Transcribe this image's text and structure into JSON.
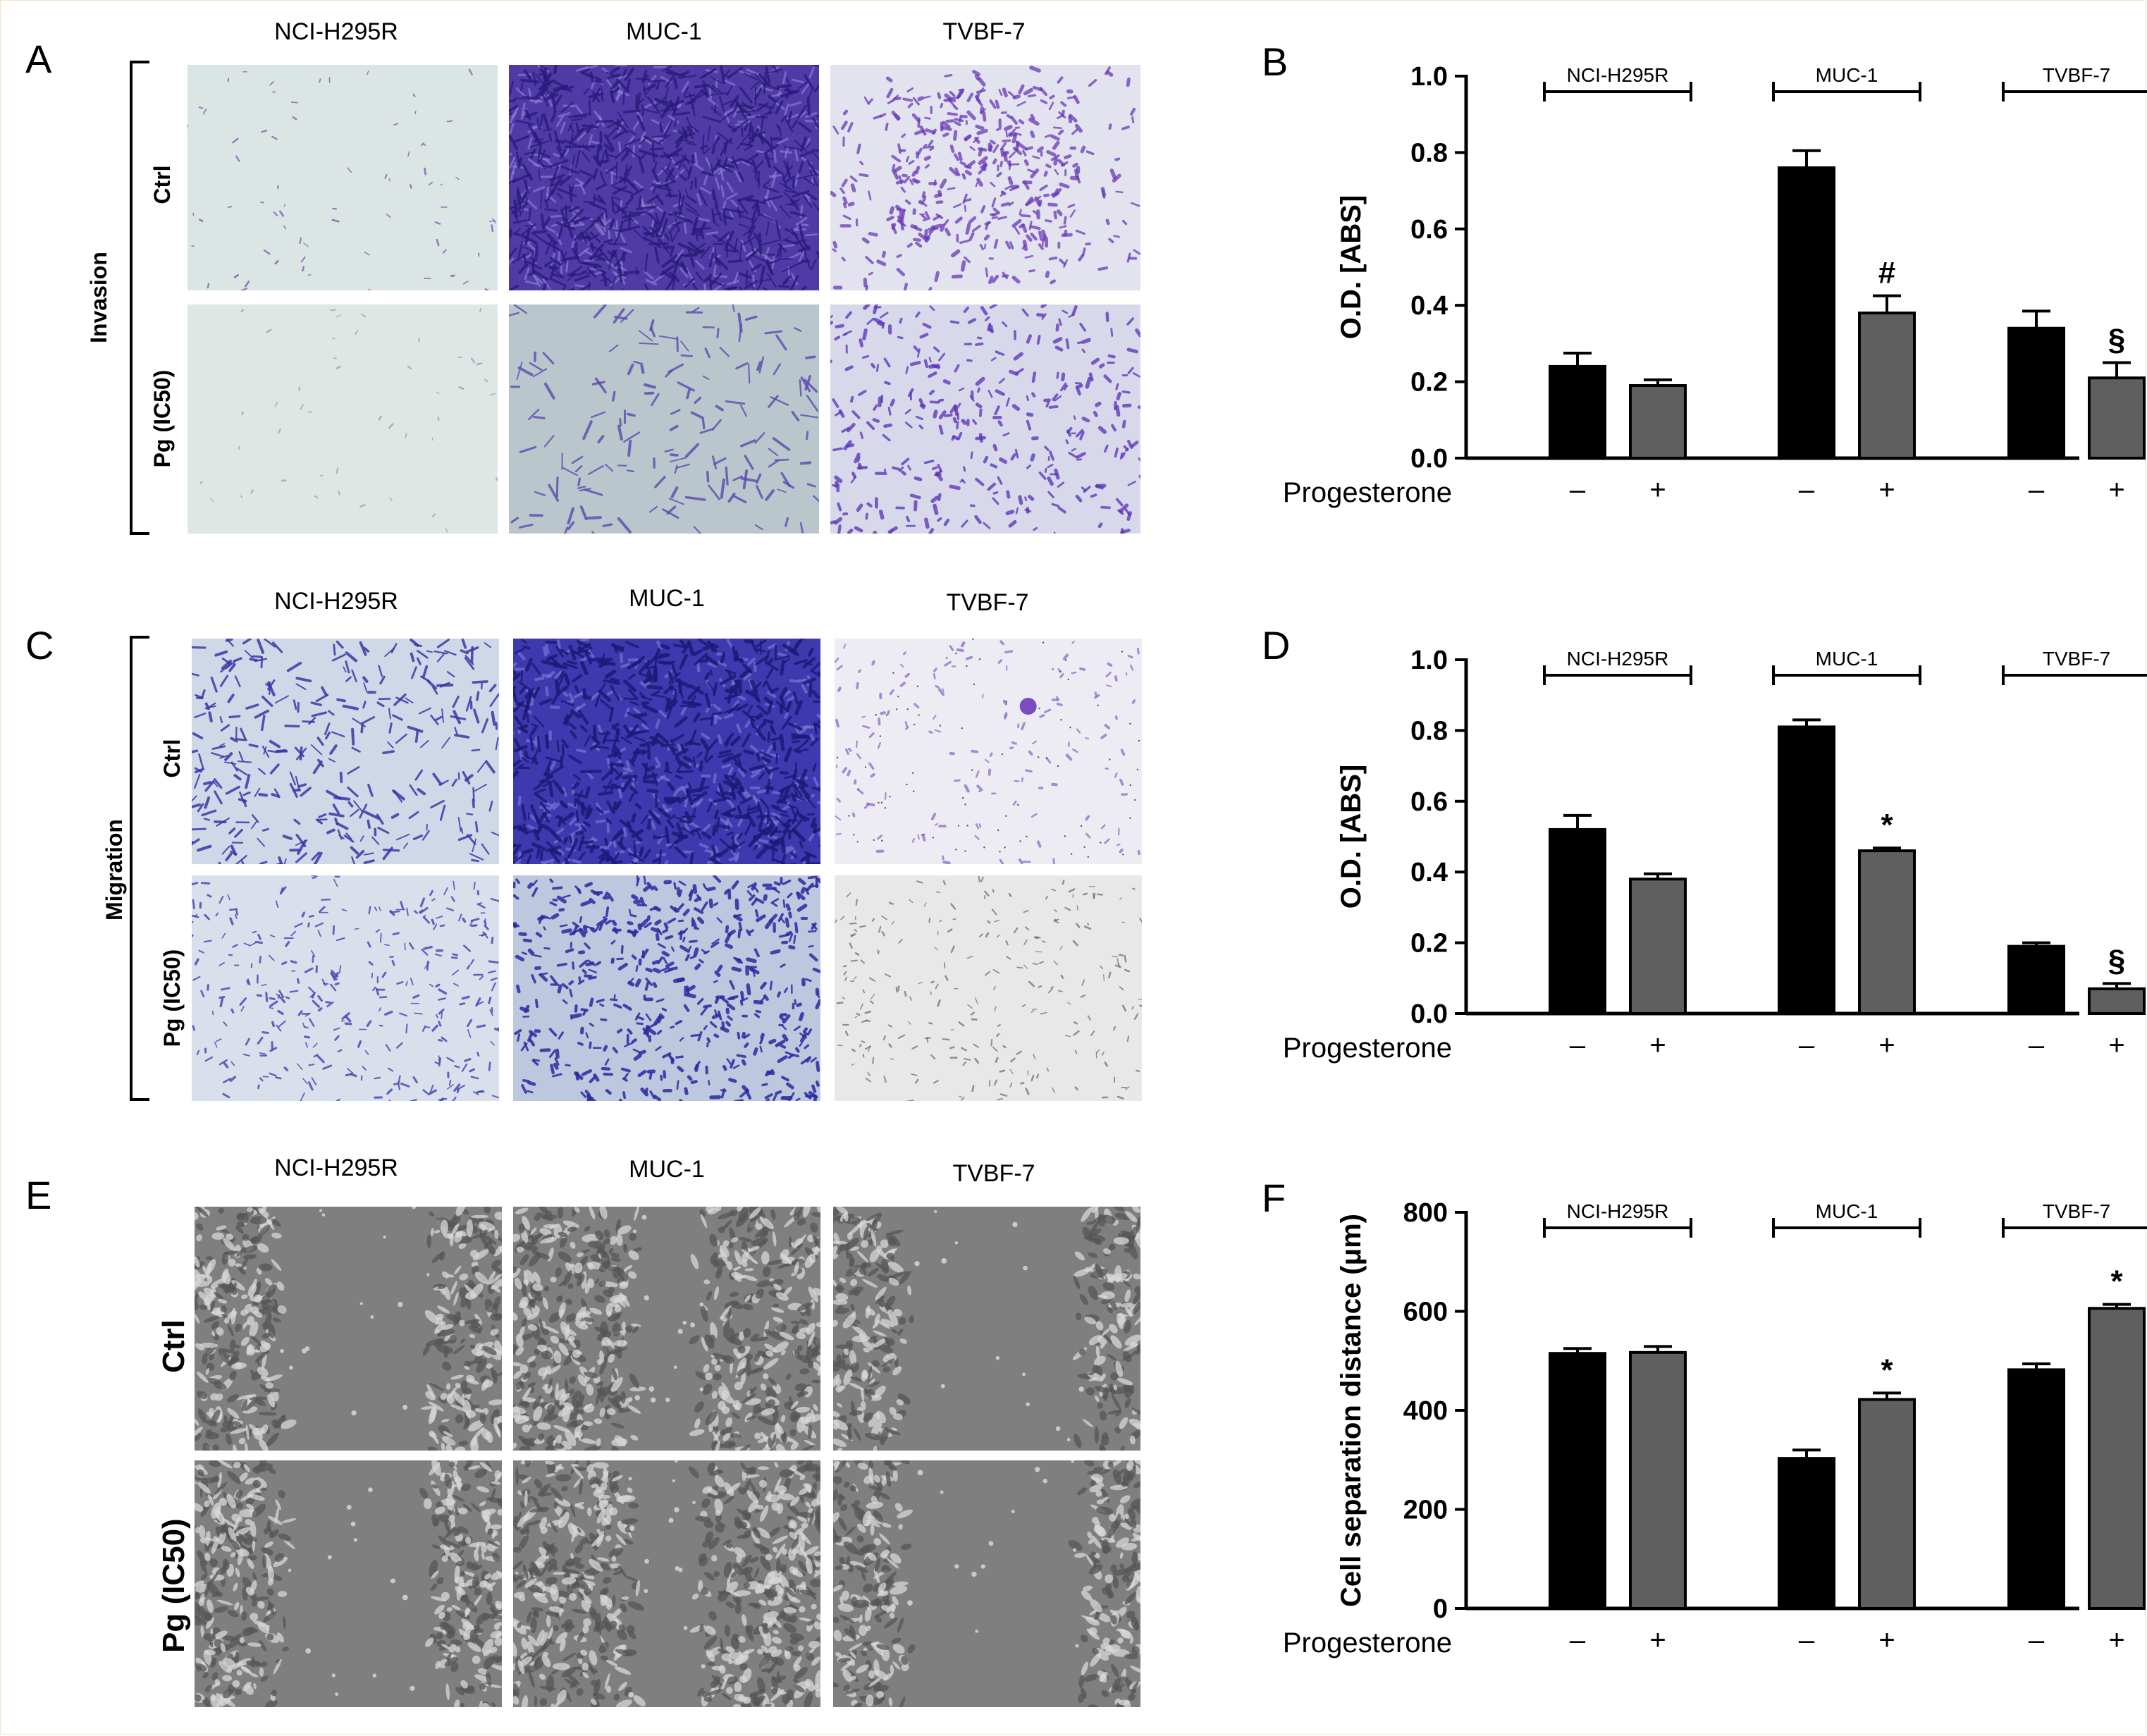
{
  "panel_letters": [
    "A",
    "B",
    "C",
    "D",
    "E",
    "F"
  ],
  "micrographs": {
    "columns": [
      "NCI-H295R",
      "MUC-1",
      "TVBF-7"
    ],
    "rows": [
      "Ctrl",
      "Pg (IC50)"
    ],
    "assays": [
      "Invasion",
      "Migration"
    ],
    "colors": {
      "invasion_stain": "#5a2fb8",
      "migration_stain": "#3a2ec0",
      "scratch_bg": "#8a8a8a"
    }
  },
  "chart_data": [
    {
      "panel": "B",
      "type": "bar",
      "groups": [
        "NCI-H295R",
        "MUC-1",
        "TVBF-7"
      ],
      "categories": [
        "–",
        "+",
        "–",
        "+",
        "–",
        "+"
      ],
      "xlabel": "Progesterone",
      "ylabel": "O.D. [ABS]",
      "ylim": [
        0,
        1.0
      ],
      "yticks": [
        "0.0",
        "0.2",
        "0.4",
        "0.6",
        "0.8",
        "1.0"
      ],
      "values": [
        0.24,
        0.19,
        0.76,
        0.38,
        0.34,
        0.21
      ],
      "errors": [
        0.035,
        0.015,
        0.045,
        0.045,
        0.045,
        0.04
      ],
      "annotations": [
        "",
        "",
        "",
        "#",
        "",
        "§"
      ],
      "colors": [
        "#000000",
        "#5f5f5f",
        "#000000",
        "#5f5f5f",
        "#000000",
        "#5f5f5f"
      ],
      "grid": false
    },
    {
      "panel": "D",
      "type": "bar",
      "groups": [
        "NCI-H295R",
        "MUC-1",
        "TVBF-7"
      ],
      "categories": [
        "–",
        "+",
        "–",
        "+",
        "–",
        "+"
      ],
      "xlabel": "Progesterone",
      "ylabel": "O.D. [ABS]",
      "ylim": [
        0,
        1.0
      ],
      "yticks": [
        "0.0",
        "0.2",
        "0.4",
        "0.6",
        "0.8",
        "1.0"
      ],
      "values": [
        0.52,
        0.38,
        0.81,
        0.46,
        0.19,
        0.07
      ],
      "errors": [
        0.04,
        0.015,
        0.02,
        0.008,
        0.01,
        0.015
      ],
      "annotations": [
        "",
        "",
        "",
        "*",
        "",
        "§"
      ],
      "colors": [
        "#000000",
        "#5f5f5f",
        "#000000",
        "#5f5f5f",
        "#000000",
        "#5f5f5f"
      ],
      "grid": false
    },
    {
      "panel": "F",
      "type": "bar",
      "groups": [
        "NCI-H295R",
        "MUC-1",
        "TVBF-7"
      ],
      "categories": [
        "–",
        "+",
        "–",
        "+",
        "–",
        "+"
      ],
      "xlabel": "Progesterone",
      "ylabel": "Cell separation distance (μm)",
      "ylim": [
        0,
        800
      ],
      "yticks": [
        "0",
        "200",
        "400",
        "600",
        "800"
      ],
      "values": [
        515,
        517,
        303,
        422,
        482,
        606
      ],
      "errors": [
        10,
        12,
        17,
        13,
        12,
        8
      ],
      "annotations": [
        "",
        "",
        "",
        "*",
        "",
        "*"
      ],
      "colors": [
        "#000000",
        "#5f5f5f",
        "#000000",
        "#5f5f5f",
        "#000000",
        "#5f5f5f"
      ],
      "grid": false
    }
  ]
}
